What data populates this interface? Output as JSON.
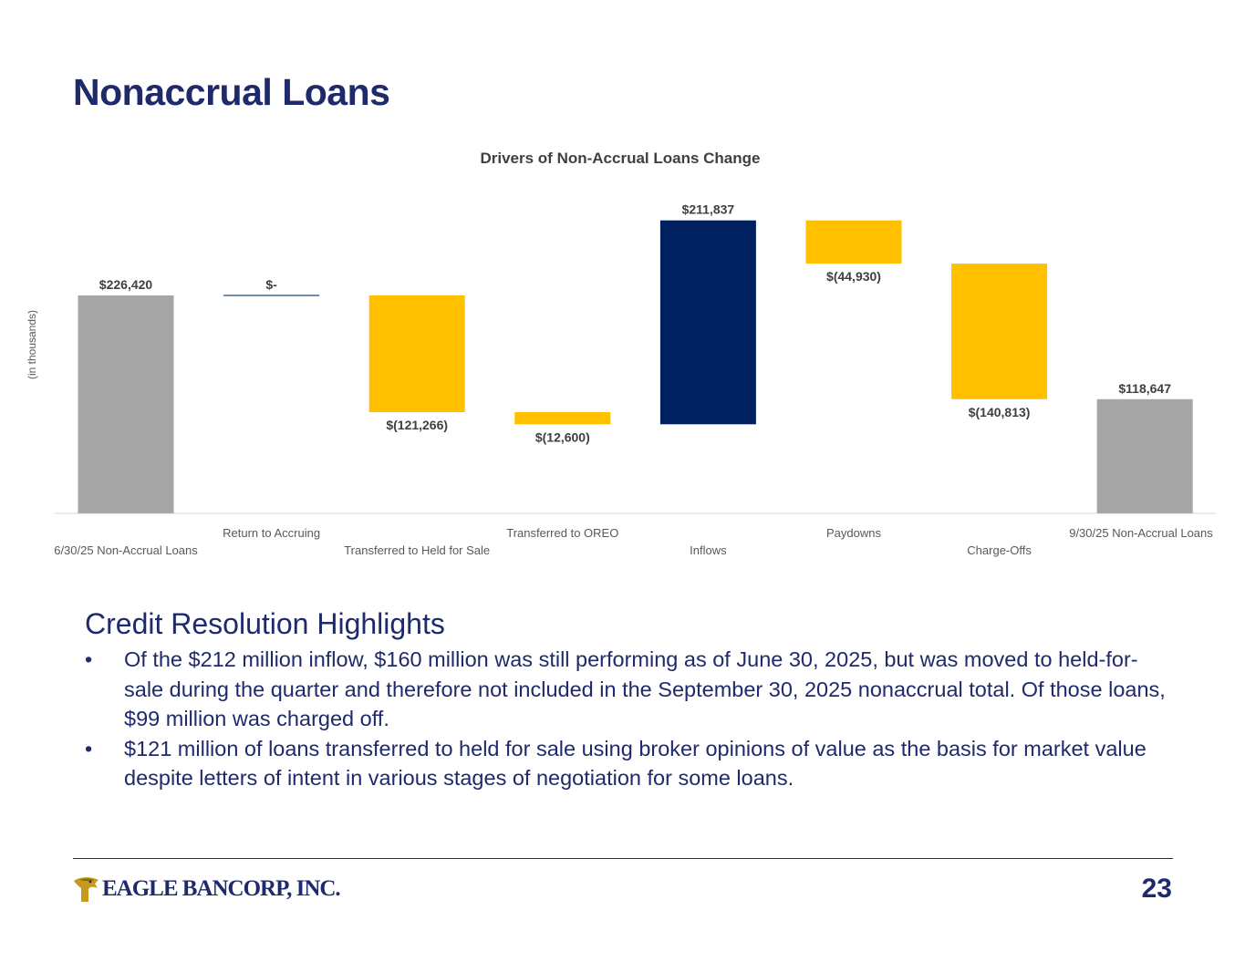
{
  "page": {
    "title": "Nonaccrual Loans",
    "page_number": "23"
  },
  "chart_data": {
    "type": "bar",
    "subtype": "waterfall",
    "title": "Drivers of Non-Accrual Loans Change",
    "ylabel": "(in thousands)",
    "xlabel": "",
    "grid": false,
    "legend": "none",
    "categories": [
      "6/30/25 Non-Accrual Loans",
      "Return to Accruing",
      "Transferred to Held for Sale",
      "Transferred to OREO",
      "Inflows",
      "Paydowns",
      "Charge-Offs",
      "9/30/25 Non-Accrual Loans"
    ],
    "values": [
      226420,
      0,
      -121266,
      -12600,
      211837,
      -44930,
      -140813,
      118647
    ],
    "data_labels": [
      "$226,420",
      "$-",
      "$(121,266)",
      "$(12,600)",
      "$211,837",
      "$(44,930)",
      "$(140,813)",
      "$118,647"
    ],
    "bar_roles": [
      "total",
      "change",
      "change",
      "change",
      "change",
      "change",
      "change",
      "total"
    ],
    "colors": {
      "total": "#a6a6a6",
      "increase": "#002060",
      "decrease": "#ffc000",
      "zero": "#1f4e79"
    }
  },
  "highlights": {
    "heading": "Credit Resolution Highlights",
    "bullet_symbol": "•",
    "bullets": [
      "Of the $212 million inflow, $160 million was still performing as of June 30, 2025, but was moved to held-for-sale during the quarter and therefore not included in the September 30, 2025 nonaccrual total. Of those loans, $99 million was charged off.",
      "$121 million of loans transferred to held for sale using broker opinions of value as the basis for market value despite letters of intent in various stages of negotiation for some loans."
    ]
  },
  "footer": {
    "logo_text": "EAGLE BANCORP, INC.",
    "logo_icon": "eagle-head-icon"
  }
}
